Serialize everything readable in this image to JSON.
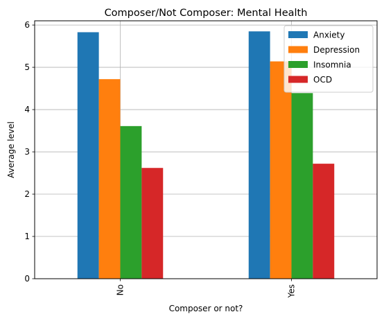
{
  "chart_data": {
    "type": "bar",
    "title": "Composer/Not Composer: Mental Health",
    "xlabel": "Composer or not?",
    "ylabel": "Average level",
    "categories": [
      "No",
      "Yes"
    ],
    "series": [
      {
        "name": "Anxiety",
        "color": "#1f77b4",
        "values": [
          5.83,
          5.85
        ]
      },
      {
        "name": "Depression",
        "color": "#ff7f0e",
        "values": [
          4.72,
          5.14
        ]
      },
      {
        "name": "Insomnia",
        "color": "#2ca02c",
        "values": [
          3.61,
          4.39
        ]
      },
      {
        "name": "OCD",
        "color": "#d62728",
        "values": [
          2.62,
          2.72
        ]
      }
    ],
    "ylim": [
      0,
      6.1
    ],
    "yticks": [
      "0",
      "1",
      "2",
      "3",
      "4",
      "5",
      "6"
    ],
    "grid": true,
    "legend_position": "top-right",
    "x_tick_rotation": "vertical"
  }
}
